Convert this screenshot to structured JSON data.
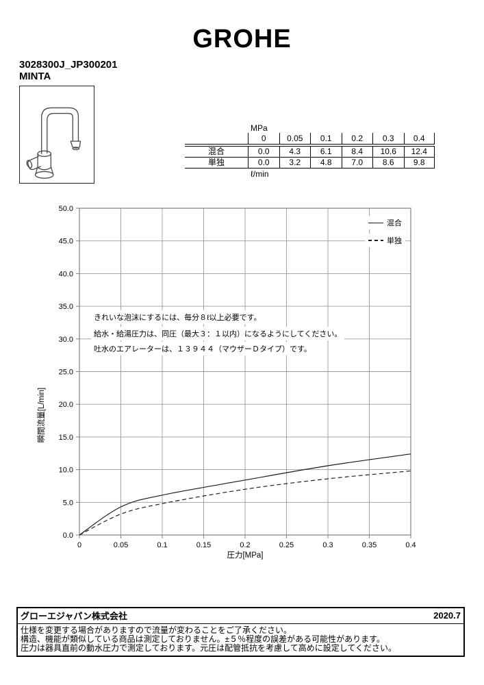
{
  "page": {
    "brand": "GROHE",
    "product_code": "3028300J_JP300201",
    "product_name": "MINTA"
  },
  "flow_table": {
    "unit_top": "MPa",
    "unit_bottom": "ℓ/min",
    "pressure_headers": [
      "0",
      "0.05",
      "0.1",
      "0.2",
      "0.3",
      "0.4"
    ],
    "rows": [
      {
        "label": "混合",
        "values": [
          "0.0",
          "4.3",
          "6.1",
          "8.4",
          "10.6",
          "12.4"
        ]
      },
      {
        "label": "単独",
        "values": [
          "0.0",
          "3.2",
          "4.8",
          "7.0",
          "8.6",
          "9.8"
        ]
      }
    ]
  },
  "chart_data": {
    "type": "line",
    "title": "",
    "xlabel": "圧力[MPa]",
    "ylabel": "瞬間流量[L/min]",
    "xlim": [
      0,
      0.4
    ],
    "ylim": [
      0,
      50
    ],
    "x_ticks": [
      0,
      0.05,
      0.1,
      0.15,
      0.2,
      0.25,
      0.3,
      0.35,
      0.4
    ],
    "x_tick_labels": [
      "0",
      "0.05",
      "0.1",
      "0.15",
      "0.2",
      "0.25",
      "0.3",
      "0.35",
      "0.4"
    ],
    "y_ticks": [
      0,
      5,
      10,
      15,
      20,
      25,
      30,
      35,
      40,
      45,
      50
    ],
    "y_tick_labels": [
      "0.0",
      "5.0",
      "10.0",
      "15.0",
      "20.0",
      "25.0",
      "30.0",
      "35.0",
      "40.0",
      "45.0",
      "50.0"
    ],
    "grid": true,
    "legend_position": "top-right-inside",
    "series": [
      {
        "name": "混合",
        "style": "solid",
        "points": [
          [
            0,
            0.0
          ],
          [
            0.05,
            4.3
          ],
          [
            0.1,
            6.1
          ],
          [
            0.2,
            8.4
          ],
          [
            0.3,
            10.6
          ],
          [
            0.4,
            12.4
          ]
        ]
      },
      {
        "name": "単独",
        "style": "dashed",
        "points": [
          [
            0,
            0.0
          ],
          [
            0.05,
            3.2
          ],
          [
            0.1,
            4.8
          ],
          [
            0.2,
            7.0
          ],
          [
            0.3,
            8.6
          ],
          [
            0.4,
            9.8
          ]
        ]
      }
    ],
    "annotations": [
      "きれいな泡沫にするには、毎分８ℓ以上必要です。",
      "給水・給湯圧力は、同圧（最大３：１以内）になるようにしてください。",
      "吐水のエアレーターは、１３９４４（マウザーＤタイプ）です。"
    ]
  },
  "footer": {
    "company": "グローエジャパン株式会社",
    "date": "2020.7",
    "notes": [
      "仕様を変更する場合がありますので流量が変わることをご了承ください。",
      "構造、機能が類似している商品は測定しておりません。±５％程度の誤差がある可能性があります。",
      "圧力は器具直前の動水圧力で測定しております。元圧は配管抵抗を考慮して高めに設定してください。"
    ]
  },
  "colors": {
    "grid": "#9a9a9a",
    "frame": "#7f7f7f",
    "line": "#1a1a1a",
    "text": "#000000"
  }
}
